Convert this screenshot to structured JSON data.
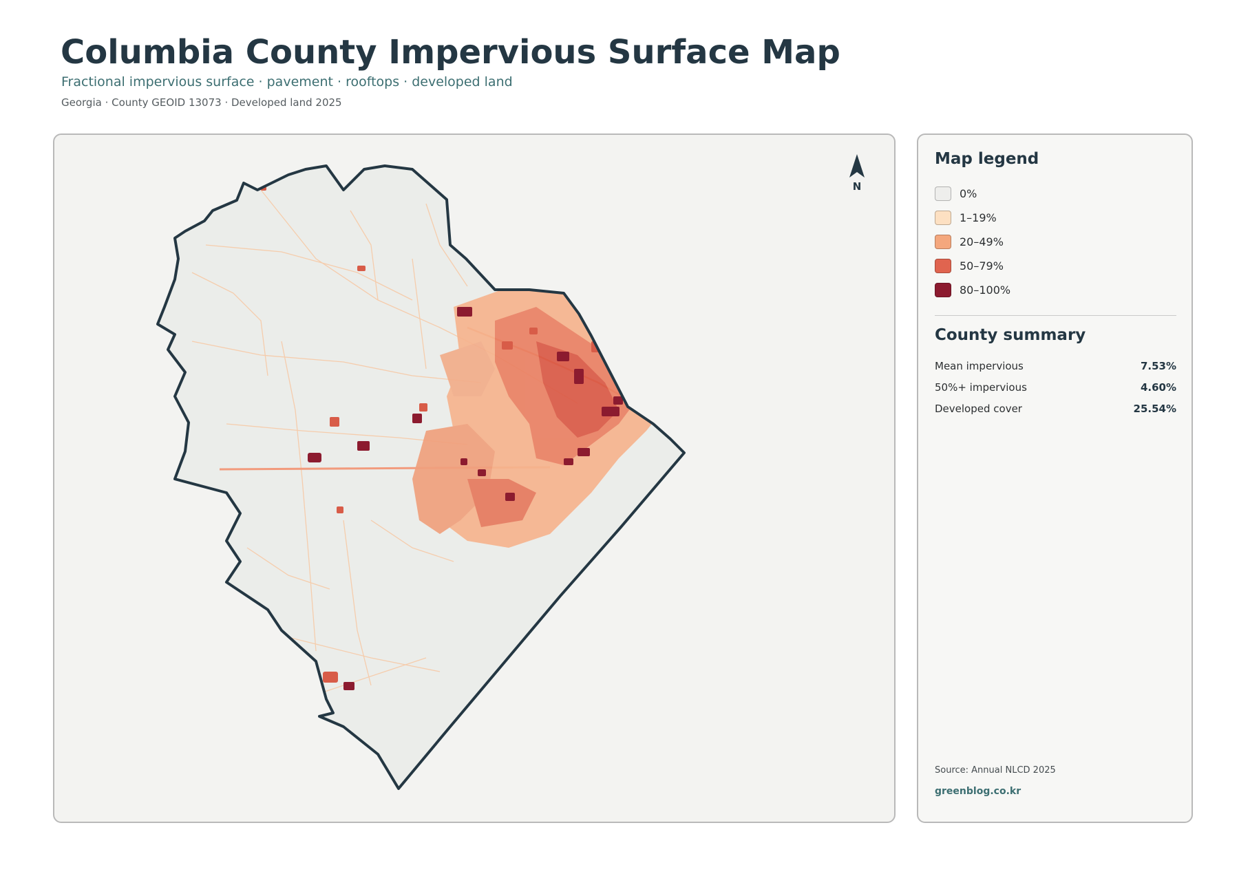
{
  "header": {
    "title": "Columbia County Impervious Surface Map",
    "subtitle": "Fractional impervious surface · pavement · rooftops · developed land",
    "meta": "Georgia · County GEOID 13073 · Developed land 2025"
  },
  "map": {
    "north_label": "N",
    "north_icon": "north-arrow-icon",
    "colors": {
      "boundary": "#243743",
      "land": "#ebedea",
      "panel": "#f3f3f1"
    }
  },
  "legend": {
    "title": "Map legend",
    "items": [
      {
        "label": "0%",
        "color": "#eeeeec"
      },
      {
        "label": "1–19%",
        "color": "#fde0c2"
      },
      {
        "label": "20–49%",
        "color": "#f4a77d"
      },
      {
        "label": "50–79%",
        "color": "#e0644f"
      },
      {
        "label": "80–100%",
        "color": "#8c1b2f"
      }
    ]
  },
  "summary": {
    "title": "County summary",
    "rows": [
      {
        "label": "Mean impervious",
        "value": "7.53%"
      },
      {
        "label": "50%+ impervious",
        "value": "4.60%"
      },
      {
        "label": "Developed cover",
        "value": "25.54%"
      }
    ]
  },
  "footer": {
    "source": "Source: Annual NLCD 2025",
    "brand": "greenblog.co.kr"
  }
}
